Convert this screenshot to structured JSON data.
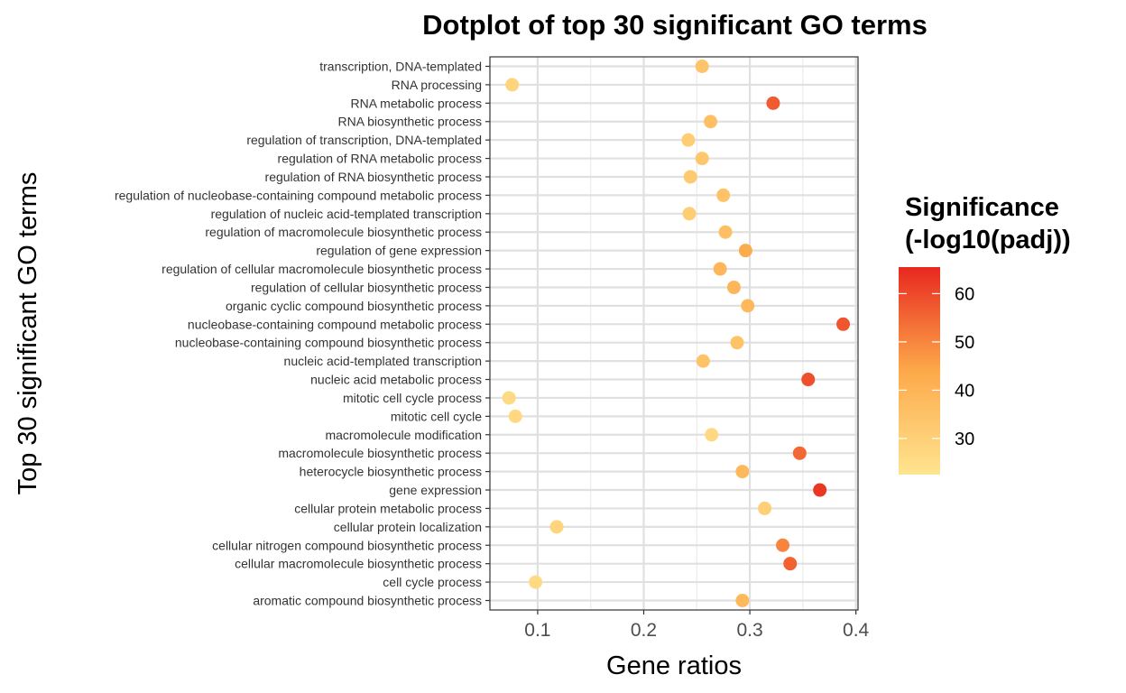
{
  "chart_data": {
    "type": "scatter",
    "title": "Dotplot of top 30 significant GO terms",
    "xlabel": "Gene ratios",
    "ylabel": "Top 30 significant GO terms",
    "xlim": [
      0.055,
      0.402
    ],
    "xticks": [
      0.1,
      0.2,
      0.3,
      0.4
    ],
    "xtick_labels": [
      "0.1",
      "0.2",
      "0.3",
      "0.4"
    ],
    "grid": true,
    "legend": {
      "title_lines": [
        "Significance",
        "(-log10(padj))"
      ],
      "placement": "right",
      "min": 22.5,
      "max": 65.5,
      "ticks": [
        30,
        40,
        50,
        60
      ],
      "tick_labels": [
        "30",
        "40",
        "50",
        "60"
      ],
      "color_low": "#FFE48F",
      "color_high": "#E8281F"
    },
    "points": [
      {
        "term": "transcription, DNA-templated",
        "x": 0.255,
        "significance": 34
      },
      {
        "term": "RNA processing",
        "x": 0.076,
        "significance": 28
      },
      {
        "term": "RNA metabolic process",
        "x": 0.322,
        "significance": 57
      },
      {
        "term": "RNA biosynthetic process",
        "x": 0.263,
        "significance": 36
      },
      {
        "term": "regulation of transcription, DNA-templated",
        "x": 0.242,
        "significance": 31
      },
      {
        "term": "regulation of RNA metabolic process",
        "x": 0.255,
        "significance": 33
      },
      {
        "term": "regulation of RNA biosynthetic process",
        "x": 0.244,
        "significance": 32
      },
      {
        "term": "regulation of nucleobase-containing compound metabolic process",
        "x": 0.275,
        "significance": 35
      },
      {
        "term": "regulation of nucleic acid-templated transcription",
        "x": 0.243,
        "significance": 31
      },
      {
        "term": "regulation of macromolecule biosynthetic process",
        "x": 0.277,
        "significance": 36
      },
      {
        "term": "regulation of gene expression",
        "x": 0.296,
        "significance": 43
      },
      {
        "term": "regulation of cellular macromolecule biosynthetic process",
        "x": 0.272,
        "significance": 39
      },
      {
        "term": "regulation of cellular biosynthetic process",
        "x": 0.285,
        "significance": 39
      },
      {
        "term": "organic cyclic compound biosynthetic process",
        "x": 0.298,
        "significance": 38
      },
      {
        "term": "nucleobase-containing compound metabolic process",
        "x": 0.388,
        "significance": 58
      },
      {
        "term": "nucleobase-containing compound biosynthetic process",
        "x": 0.288,
        "significance": 35
      },
      {
        "term": "nucleic acid-templated transcription",
        "x": 0.256,
        "significance": 35
      },
      {
        "term": "nucleic acid metabolic process",
        "x": 0.355,
        "significance": 59
      },
      {
        "term": "mitotic cell cycle process",
        "x": 0.073,
        "significance": 26
      },
      {
        "term": "mitotic cell cycle",
        "x": 0.079,
        "significance": 27
      },
      {
        "term": "macromolecule modification",
        "x": 0.264,
        "significance": 27
      },
      {
        "term": "macromolecule biosynthetic process",
        "x": 0.347,
        "significance": 55
      },
      {
        "term": "heterocycle biosynthetic process",
        "x": 0.293,
        "significance": 38
      },
      {
        "term": "gene expression",
        "x": 0.366,
        "significance": 63
      },
      {
        "term": "cellular protein metabolic process",
        "x": 0.314,
        "significance": 30
      },
      {
        "term": "cellular protein localization",
        "x": 0.118,
        "significance": 28
      },
      {
        "term": "cellular nitrogen compound biosynthetic process",
        "x": 0.331,
        "significance": 50
      },
      {
        "term": "cellular macromolecule biosynthetic process",
        "x": 0.338,
        "significance": 56
      },
      {
        "term": "cell cycle process",
        "x": 0.098,
        "significance": 26
      },
      {
        "term": "aromatic compound biosynthetic process",
        "x": 0.293,
        "significance": 38
      }
    ]
  }
}
